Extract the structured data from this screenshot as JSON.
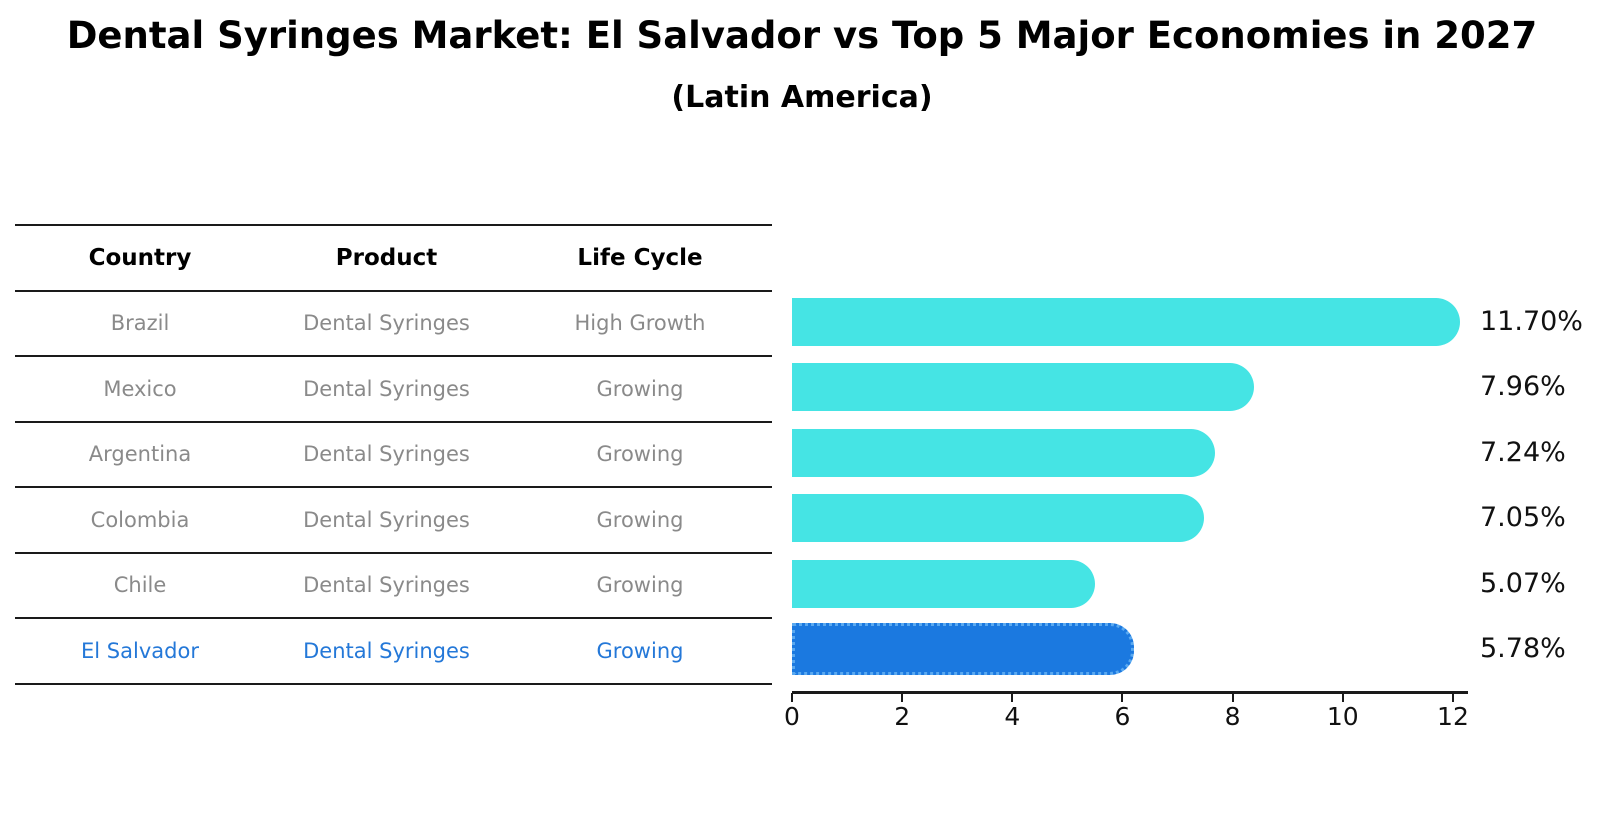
{
  "title": "Dental Syringes Market: El Salvador vs Top 5 Major Economies in 2027",
  "subtitle": "(Latin America)",
  "table": {
    "headers": {
      "country": "Country",
      "product": "Product",
      "life_cycle": "Life Cycle"
    },
    "rows": [
      {
        "country": "Brazil",
        "product": "Dental Syringes",
        "life_cycle": "High Growth"
      },
      {
        "country": "Mexico",
        "product": "Dental Syringes",
        "life_cycle": "Growing"
      },
      {
        "country": "Argentina",
        "product": "Dental Syringes",
        "life_cycle": "Growing"
      },
      {
        "country": "Colombia",
        "product": "Dental Syringes",
        "life_cycle": "Growing"
      },
      {
        "country": "Chile",
        "product": "Dental Syringes",
        "life_cycle": "Growing"
      },
      {
        "country": "El Salvador",
        "product": "Dental Syringes",
        "life_cycle": "Growing"
      }
    ]
  },
  "chart_data": {
    "type": "bar",
    "orientation": "horizontal",
    "title": "Dental Syringes Market: El Salvador vs Top 5 Major Economies in 2027 (Latin America)",
    "categories": [
      "Brazil",
      "Mexico",
      "Argentina",
      "Colombia",
      "Chile",
      "El Salvador"
    ],
    "values": [
      11.7,
      7.96,
      7.24,
      7.05,
      5.07,
      5.78
    ],
    "value_labels": [
      "11.70%",
      "7.96%",
      "7.24%",
      "7.05%",
      "5.07%",
      "5.78%"
    ],
    "xlabel": "",
    "ylabel": "",
    "xticks": [
      0,
      2,
      4,
      6,
      8,
      10,
      12
    ],
    "xlim": [
      0,
      12.3
    ],
    "grid": false,
    "legend": false,
    "bar_color": "#45e4e4",
    "highlight_color": "#1b79e0",
    "highlight_border_color": "#5aa9f0",
    "highlight_index": 5,
    "highlight_text_color": "#2478d8",
    "row_text_color": "#8a8a8a"
  }
}
